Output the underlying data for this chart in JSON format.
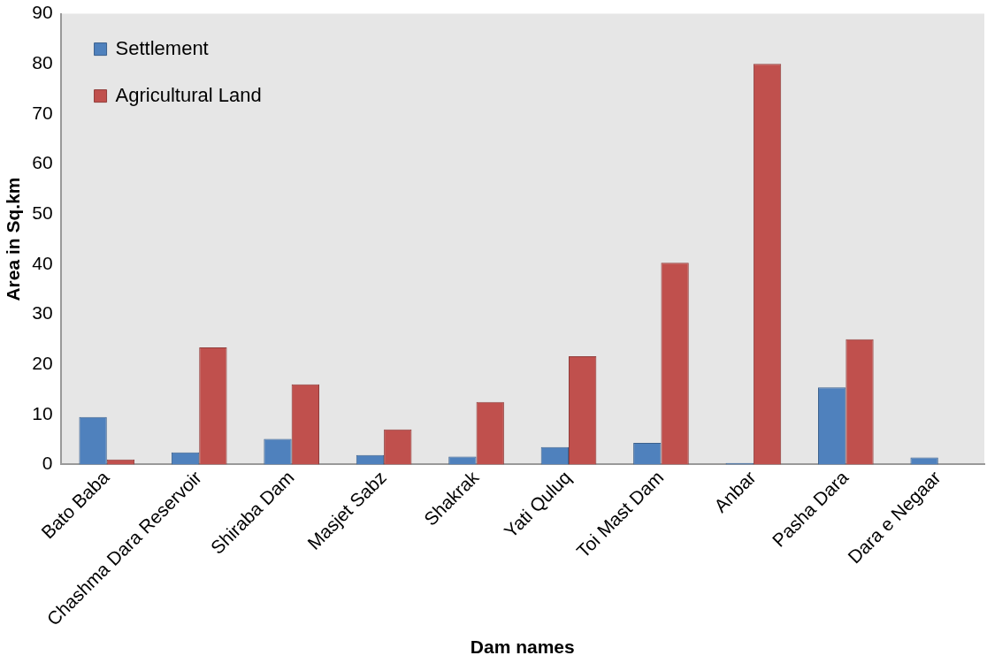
{
  "chart_data": {
    "type": "bar",
    "xlabel": "Dam names",
    "ylabel": "Area in Sq.km",
    "categories": [
      "Bato Baba",
      "Chashma Dara Reservoir",
      "Shiraba Dam",
      "Masjet Sabz",
      "Shakrak",
      "Yati Quluq",
      "Toi Mast Dam",
      "Anbar",
      "Pasha Dara",
      "Dara e Negaar"
    ],
    "series": [
      {
        "name": "Settlement",
        "color": "#4f81bd",
        "values": [
          9.5,
          2.4,
          5.1,
          1.9,
          1.6,
          3.5,
          4.3,
          0.3,
          15.4,
          1.4
        ]
      },
      {
        "name": "Agricultural Land",
        "color": "#c0504d",
        "values": [
          1.0,
          23.4,
          16.0,
          7.0,
          12.5,
          21.6,
          40.3,
          80.0,
          25.0,
          null
        ]
      }
    ],
    "ylim": [
      0,
      90
    ],
    "yticks": [
      0,
      10,
      20,
      30,
      40,
      50,
      60,
      70,
      80,
      90
    ],
    "grid": false,
    "legend": "top left"
  }
}
